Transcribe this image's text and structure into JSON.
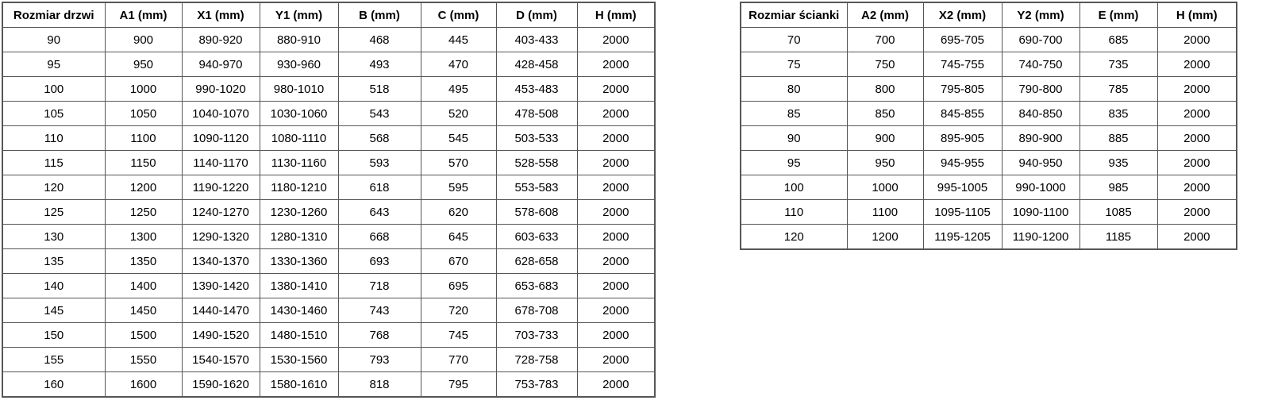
{
  "door_table": {
    "headers": [
      "Rozmiar drzwi",
      "A1 (mm)",
      "X1 (mm)",
      "Y1 (mm)",
      "B (mm)",
      "C (mm)",
      "D (mm)",
      "H (mm)"
    ],
    "rows": [
      [
        "90",
        "900",
        "890-920",
        "880-910",
        "468",
        "445",
        "403-433",
        "2000"
      ],
      [
        "95",
        "950",
        "940-970",
        "930-960",
        "493",
        "470",
        "428-458",
        "2000"
      ],
      [
        "100",
        "1000",
        "990-1020",
        "980-1010",
        "518",
        "495",
        "453-483",
        "2000"
      ],
      [
        "105",
        "1050",
        "1040-1070",
        "1030-1060",
        "543",
        "520",
        "478-508",
        "2000"
      ],
      [
        "110",
        "1100",
        "1090-1120",
        "1080-1110",
        "568",
        "545",
        "503-533",
        "2000"
      ],
      [
        "115",
        "1150",
        "1140-1170",
        "1130-1160",
        "593",
        "570",
        "528-558",
        "2000"
      ],
      [
        "120",
        "1200",
        "1190-1220",
        "1180-1210",
        "618",
        "595",
        "553-583",
        "2000"
      ],
      [
        "125",
        "1250",
        "1240-1270",
        "1230-1260",
        "643",
        "620",
        "578-608",
        "2000"
      ],
      [
        "130",
        "1300",
        "1290-1320",
        "1280-1310",
        "668",
        "645",
        "603-633",
        "2000"
      ],
      [
        "135",
        "1350",
        "1340-1370",
        "1330-1360",
        "693",
        "670",
        "628-658",
        "2000"
      ],
      [
        "140",
        "1400",
        "1390-1420",
        "1380-1410",
        "718",
        "695",
        "653-683",
        "2000"
      ],
      [
        "145",
        "1450",
        "1440-1470",
        "1430-1460",
        "743",
        "720",
        "678-708",
        "2000"
      ],
      [
        "150",
        "1500",
        "1490-1520",
        "1480-1510",
        "768",
        "745",
        "703-733",
        "2000"
      ],
      [
        "155",
        "1550",
        "1540-1570",
        "1530-1560",
        "793",
        "770",
        "728-758",
        "2000"
      ],
      [
        "160",
        "1600",
        "1590-1620",
        "1580-1610",
        "818",
        "795",
        "753-783",
        "2000"
      ]
    ]
  },
  "wall_table": {
    "headers": [
      "Rozmiar ścianki",
      "A2 (mm)",
      "X2 (mm)",
      "Y2 (mm)",
      "E (mm)",
      "H (mm)"
    ],
    "rows": [
      [
        "70",
        "700",
        "695-705",
        "690-700",
        "685",
        "2000"
      ],
      [
        "75",
        "750",
        "745-755",
        "740-750",
        "735",
        "2000"
      ],
      [
        "80",
        "800",
        "795-805",
        "790-800",
        "785",
        "2000"
      ],
      [
        "85",
        "850",
        "845-855",
        "840-850",
        "835",
        "2000"
      ],
      [
        "90",
        "900",
        "895-905",
        "890-900",
        "885",
        "2000"
      ],
      [
        "95",
        "950",
        "945-955",
        "940-950",
        "935",
        "2000"
      ],
      [
        "100",
        "1000",
        "995-1005",
        "990-1000",
        "985",
        "2000"
      ],
      [
        "110",
        "1100",
        "1095-1105",
        "1090-1100",
        "1085",
        "2000"
      ],
      [
        "120",
        "1200",
        "1195-1205",
        "1190-1200",
        "1185",
        "2000"
      ]
    ]
  },
  "colors": {
    "border": "#565656",
    "text": "#000000",
    "background": "#ffffff"
  }
}
